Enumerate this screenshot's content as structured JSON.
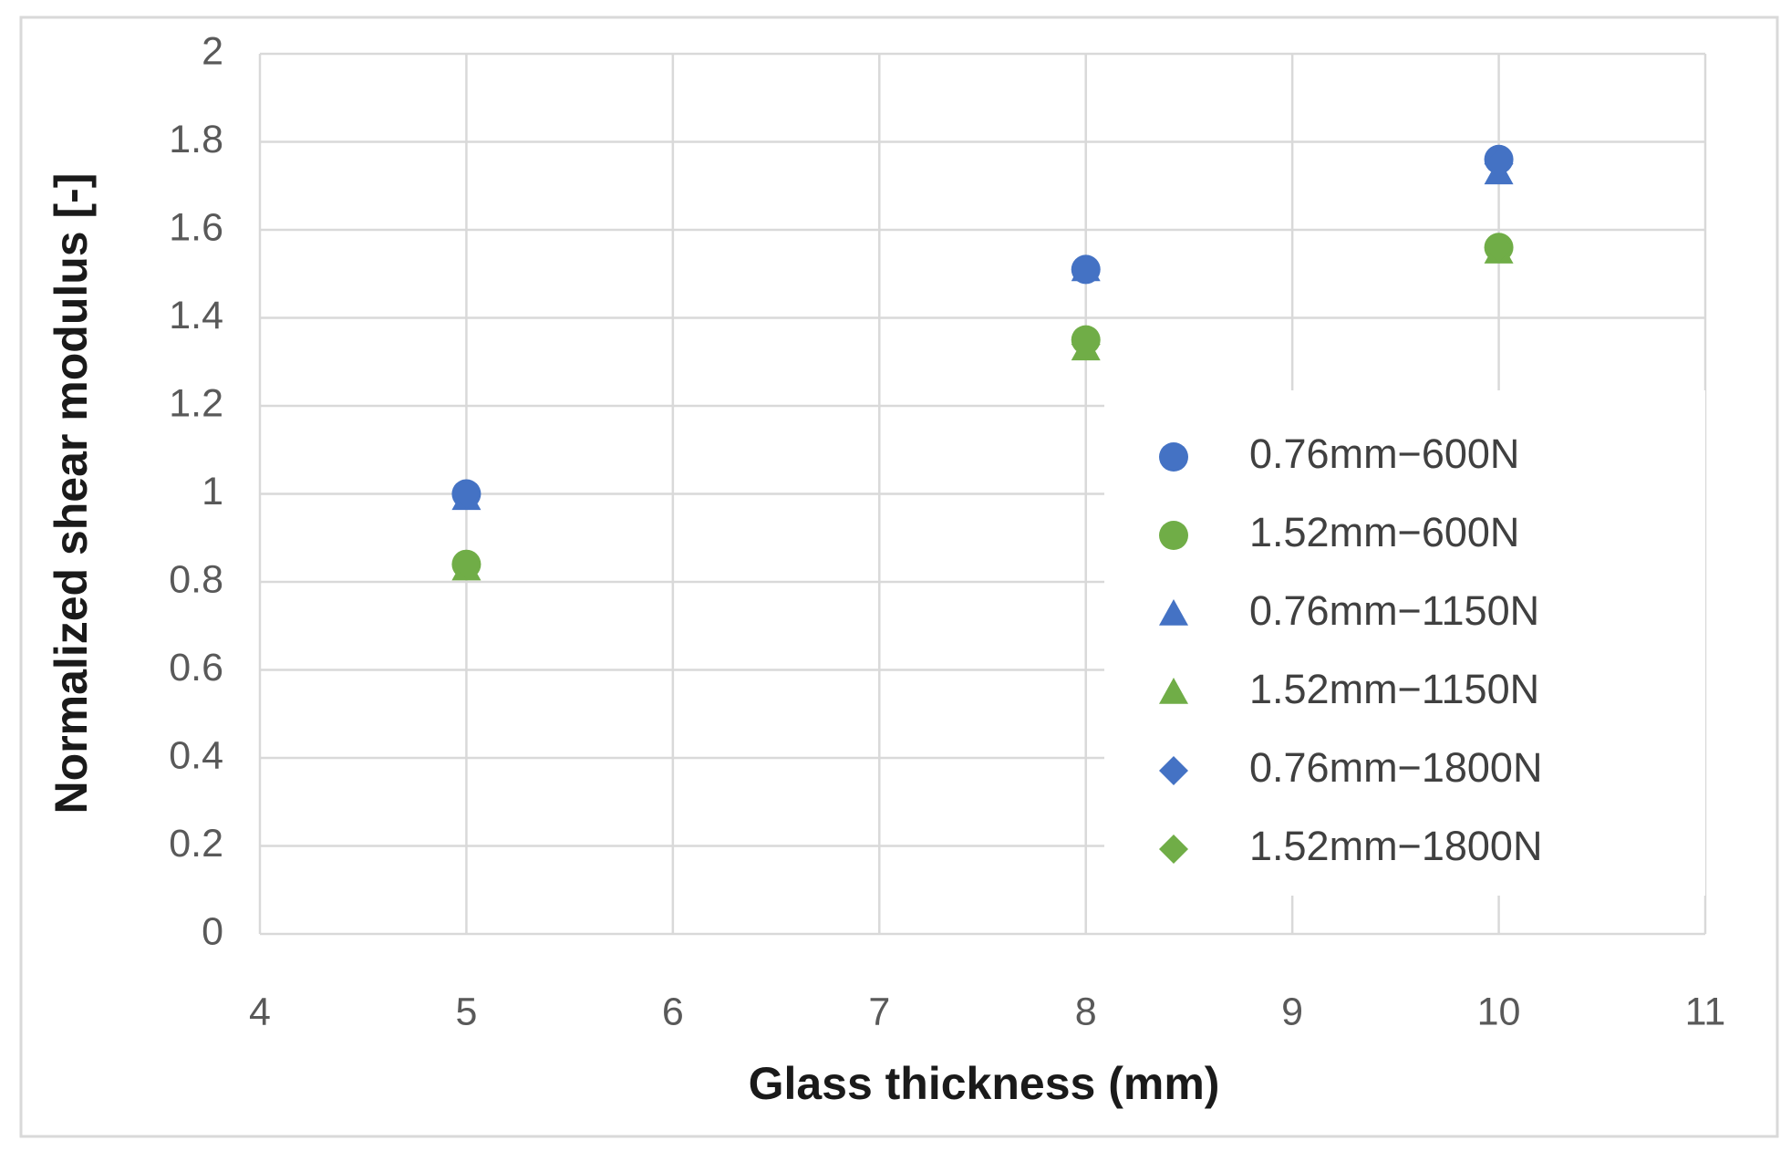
{
  "chart_data": {
    "type": "scatter",
    "xlabel": "Glass thickness (mm)",
    "ylabel": "Normalized shear modulus [-]",
    "x": [
      5,
      8,
      10
    ],
    "series": [
      {
        "name": "0.76mm−600N",
        "color": "#4472c4",
        "marker": "circle",
        "values": [
          1.0,
          1.51,
          1.76
        ]
      },
      {
        "name": "1.52mm−600N",
        "color": "#70ad47",
        "marker": "circle",
        "values": [
          0.84,
          1.35,
          1.56
        ]
      },
      {
        "name": "0.76mm−1150N",
        "color": "#4472c4",
        "marker": "triangle",
        "values": [
          0.99,
          1.51,
          1.73
        ]
      },
      {
        "name": "1.52mm−1150N",
        "color": "#70ad47",
        "marker": "triangle",
        "values": [
          0.83,
          1.33,
          1.55
        ]
      },
      {
        "name": "0.76mm−1800N",
        "color": "#4472c4",
        "marker": "diamond",
        "values": [
          1.0,
          1.51,
          1.75
        ]
      },
      {
        "name": "1.52mm−1800N",
        "color": "#70ad47",
        "marker": "diamond",
        "values": [
          0.84,
          1.34,
          1.56
        ]
      }
    ],
    "xlim": [
      4,
      11
    ],
    "xticks": [
      4,
      5,
      6,
      7,
      8,
      9,
      10,
      11
    ],
    "ylim": [
      0,
      2
    ],
    "yticks": [
      0,
      0.2,
      0.4,
      0.6,
      0.8,
      1,
      1.2,
      1.4,
      1.6,
      1.8,
      2
    ],
    "grid": true
  }
}
